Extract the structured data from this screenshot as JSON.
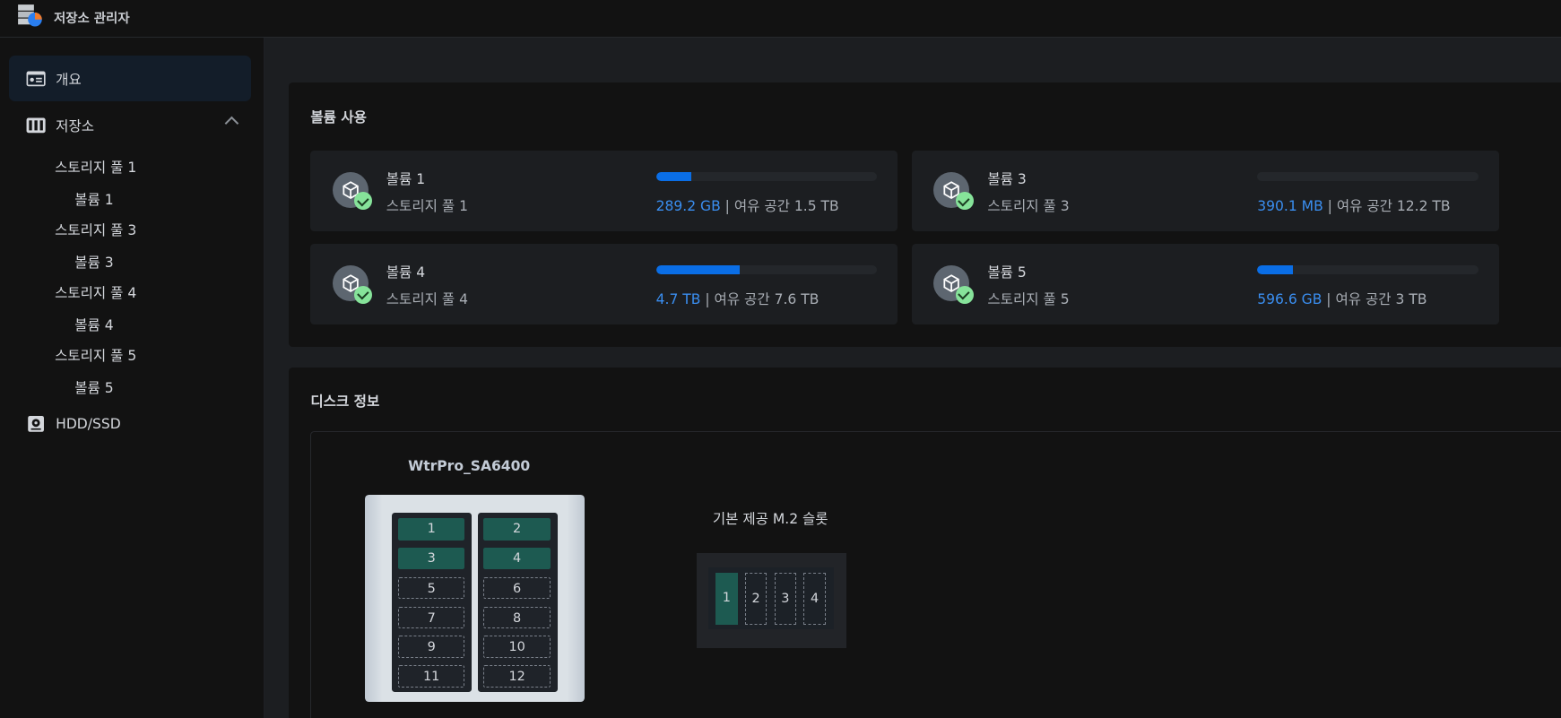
{
  "app": {
    "title": "저장소 관리자",
    "icon": "storage-manager-icon"
  },
  "sidebar": {
    "overview": {
      "label": "개요",
      "icon": "overview-card-icon",
      "active": true
    },
    "storage": {
      "label": "저장소",
      "icon": "storage-icon",
      "expanded": true,
      "pools": [
        {
          "label": "스토리지 풀 1",
          "volume": "볼륨 1"
        },
        {
          "label": "스토리지 풀 3",
          "volume": "볼륨 3"
        },
        {
          "label": "스토리지 풀 4",
          "volume": "볼륨 4"
        },
        {
          "label": "스토리지 풀 5",
          "volume": "볼륨 5"
        }
      ]
    },
    "hdd": {
      "label": "HDD/SSD",
      "icon": "hdd-icon"
    }
  },
  "volume_usage": {
    "title": "볼륨 사용",
    "free_label": "여유 공간",
    "volumes": [
      {
        "name": "볼륨 1",
        "pool": "스토리지 풀 1",
        "used": "289.2 GB",
        "free": "1.5 TB",
        "usage_percent": 16,
        "status": "healthy"
      },
      {
        "name": "볼륨 3",
        "pool": "스토리지 풀 3",
        "used": "390.1 MB",
        "free": "12.2 TB",
        "usage_percent": 0,
        "status": "healthy"
      },
      {
        "name": "볼륨 4",
        "pool": "스토리지 풀 4",
        "used": "4.7 TB",
        "free": "7.6 TB",
        "usage_percent": 38,
        "status": "healthy"
      },
      {
        "name": "볼륨 5",
        "pool": "스토리지 풀 5",
        "used": "596.6 GB",
        "free": "3 TB",
        "usage_percent": 16,
        "status": "healthy"
      }
    ]
  },
  "disk_info": {
    "title": "디스크 정보",
    "model": "WtrPro_SA6400",
    "bays": [
      {
        "n": "1",
        "occupied": true
      },
      {
        "n": "2",
        "occupied": true
      },
      {
        "n": "3",
        "occupied": true
      },
      {
        "n": "4",
        "occupied": true
      },
      {
        "n": "5",
        "occupied": false
      },
      {
        "n": "6",
        "occupied": false
      },
      {
        "n": "7",
        "occupied": false
      },
      {
        "n": "8",
        "occupied": false
      },
      {
        "n": "9",
        "occupied": false
      },
      {
        "n": "10",
        "occupied": false
      },
      {
        "n": "11",
        "occupied": false
      },
      {
        "n": "12",
        "occupied": false
      }
    ],
    "m2_title": "기본 제공 M.2 슬롯",
    "m2_slots": [
      {
        "n": "1",
        "occupied": true
      },
      {
        "n": "2",
        "occupied": false
      },
      {
        "n": "3",
        "occupied": false
      },
      {
        "n": "4",
        "occupied": false
      }
    ]
  },
  "colors": {
    "accent": "#0a6ee6",
    "used_text": "#3a8ef0",
    "occupied": "#1d5a51",
    "healthy": "#86e39a"
  }
}
